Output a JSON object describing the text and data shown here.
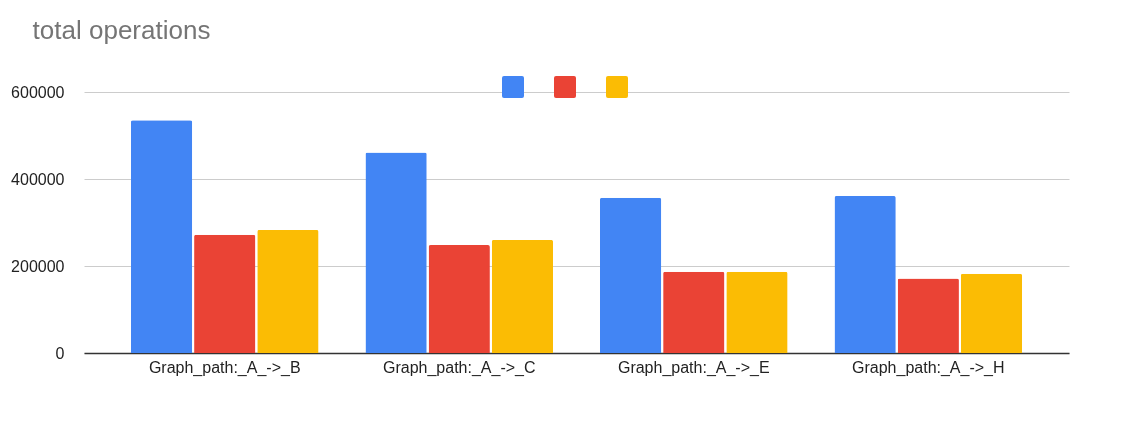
{
  "chart_data": {
    "type": "bar",
    "title": "total operations",
    "categories": [
      "Graph_path:_A_->_B",
      "Graph_path:_A_->_C",
      "Graph_path:_A_->_E",
      "Graph_path:_A_->_H"
    ],
    "series": [
      {
        "color": "#4285f4",
        "values": [
          535000,
          461000,
          357000,
          361000
        ]
      },
      {
        "color": "#ea4335",
        "values": [
          272000,
          248000,
          187000,
          171000
        ]
      },
      {
        "color": "#fbbc04",
        "values": [
          283000,
          260000,
          187000,
          182000
        ]
      }
    ],
    "ylim": [
      0,
      600000
    ],
    "yticks": [
      0,
      200000,
      400000,
      600000
    ],
    "grid": "y"
  }
}
